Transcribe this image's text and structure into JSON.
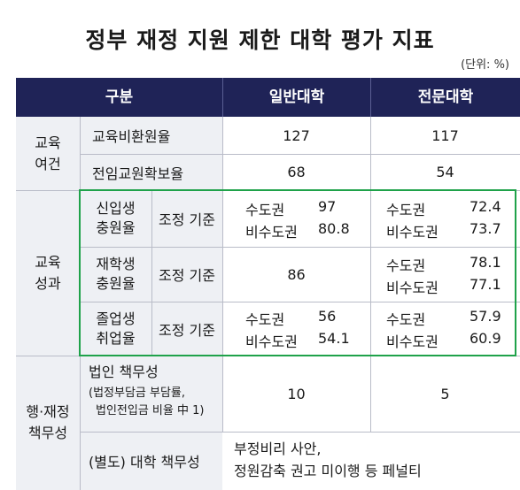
{
  "title": "정부 재정 지원 제한 대학 평가 지표",
  "unit": "(단위: %)",
  "header": {
    "col1": "구분",
    "col2": "일반대학",
    "col3": "전문대학"
  },
  "sections": {
    "edu_env": {
      "label_l1": "교육",
      "label_l2": "여건"
    },
    "edu_result": {
      "label_l1": "교육",
      "label_l2": "성과"
    },
    "responsibility": {
      "label_l1": "행·재정",
      "label_l2": "책무성"
    }
  },
  "rows": {
    "faculty_ratio": {
      "label": "교육비환원율",
      "general": "127",
      "college": "117"
    },
    "fulltime": {
      "label": "전임교원확보율",
      "general": "68",
      "college": "54"
    },
    "freshman": {
      "label_l1": "신입생",
      "label_l2": "충원율",
      "basis": "조정 기준",
      "general": [
        {
          "region": "수도권",
          "value": "97"
        },
        {
          "region": "비수도권",
          "value": "80.8"
        }
      ],
      "college": [
        {
          "region": "수도권",
          "value": "72.4"
        },
        {
          "region": "비수도권",
          "value": "73.7"
        }
      ]
    },
    "enrolled": {
      "label_l1": "재학생",
      "label_l2": "충원율",
      "basis": "조정 기준",
      "general": "86",
      "college": [
        {
          "region": "수도권",
          "value": "78.1"
        },
        {
          "region": "비수도권",
          "value": "77.1"
        }
      ]
    },
    "employment": {
      "label_l1": "졸업생",
      "label_l2": "취업율",
      "basis": "조정 기준",
      "general": [
        {
          "region": "수도권",
          "value": "56"
        },
        {
          "region": "비수도권",
          "value": "54.1"
        }
      ],
      "college": [
        {
          "region": "수도권",
          "value": "57.9"
        },
        {
          "region": "비수도권",
          "value": "60.9"
        }
      ]
    },
    "corporate": {
      "label": "법인 책무성",
      "note_l1": "(법정부담금 부담률,",
      "note_l2": "법인전입금 비율 中 1)",
      "general": "10",
      "college": "5"
    },
    "separate": {
      "label": "(별도) 대학 책무성",
      "value_l1": "부정비리 사안,",
      "value_l2": "정원감축 권고 미이행 등 페널티"
    }
  }
}
